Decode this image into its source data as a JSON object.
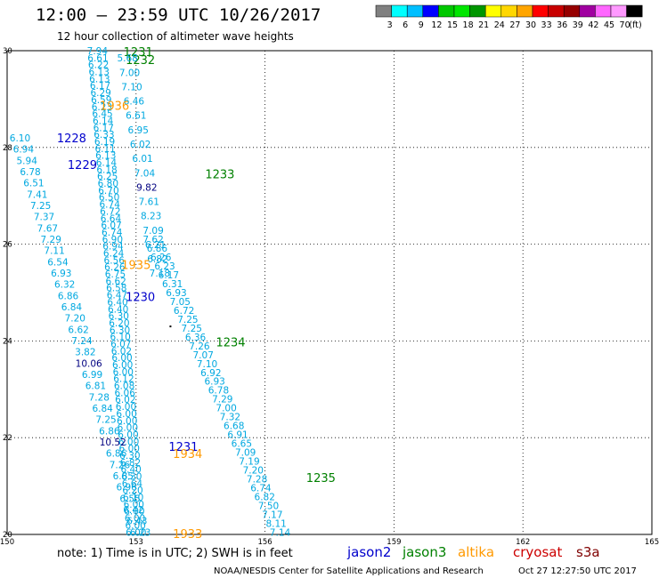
{
  "header": {
    "title": "12:00 – 23:59 UTC 10/26/2017",
    "subtitle": "12 hour collection of altimeter wave heights"
  },
  "colorbar": {
    "colors": [
      "#808080",
      "#00ffff",
      "#00bfff",
      "#0000ff",
      "#00c800",
      "#00e600",
      "#009600",
      "#ffff00",
      "#ffd700",
      "#ffa500",
      "#ff0000",
      "#c80000",
      "#960000",
      "#a000a0",
      "#ff66ff",
      "#ff99ff",
      "#000000"
    ],
    "labels": [
      "3",
      "6",
      "9",
      "12",
      "15",
      "18",
      "21",
      "24",
      "27",
      "30",
      "33",
      "36",
      "39",
      "42",
      "45",
      "70",
      "(ft)"
    ]
  },
  "footer": {
    "note": "note: 1) Time is in UTC; 2) SWH is in feet",
    "credit": "NOAA/NESDIS Center for Satellite Applications and Research",
    "timestamp": "Oct 27 12:27:50 UTC 2017",
    "legend": [
      {
        "name": "jason2",
        "color": "#0000cc"
      },
      {
        "name": "jason3",
        "color": "#008000"
      },
      {
        "name": "altika",
        "color": "#ff9900"
      },
      {
        "name": "cryosat",
        "color": "#cc0000"
      },
      {
        "name": "s3a",
        "color": "#800000"
      }
    ]
  },
  "chart_data": {
    "type": "scatter",
    "xlim": [
      150,
      165
    ],
    "ylim": [
      20,
      30
    ],
    "xticks": [
      "150",
      "153",
      "156",
      "159",
      "162",
      "165"
    ],
    "yticks": [
      "20",
      "22",
      "24",
      "26",
      "28",
      "30"
    ],
    "grid": true,
    "grid_style": "dotted",
    "colors": {
      "jason2": "#0000cc",
      "jason3": "#008000",
      "altika": "#ff9900",
      "swh": "#00a8e0",
      "swh_high": "#000080"
    },
    "tracks": [
      {
        "satellite": "jason3",
        "x0": 152.1,
        "y0": 30,
        "x1": 153.0,
        "y1": 20.05,
        "values": [
          "7.94",
          "6.61",
          "6.22",
          "6.13",
          "6.13",
          "6.17",
          "6.29",
          "6.59",
          "6.23",
          "6.45",
          "6.14",
          "6.17",
          "6.33",
          "6.19",
          "6.11",
          "6.13",
          "6.14",
          "6.18",
          "6.25",
          "6.80",
          "6.70",
          "6.50",
          "6.74",
          "6.72",
          "6.64",
          "6.07",
          "6.74",
          "6.90",
          "6.94",
          "6.24",
          "6.56",
          "6.26",
          "6.75",
          "6.62",
          "6.58",
          "6.47",
          "6.40",
          "6.40",
          "6.30",
          "6.20",
          "6.30",
          "6.10",
          "6.07",
          "6.02",
          "6.00",
          "6.00",
          "6.00",
          "6.12",
          "6.08",
          "6.06",
          "6.02",
          "6.00",
          "6.00",
          "6.00",
          "6.00",
          "6.00",
          "6.00",
          "6.00",
          "6.30",
          "6.82",
          "6.40",
          "6.30",
          "6.64",
          "6.20",
          "6.10",
          "6.00",
          "6.00",
          "6.00",
          "6.00",
          "6.00"
        ],
        "labels": [
          {
            "text": "1231",
            "x": 153.05,
            "y": 29.98
          },
          {
            "text": "1232",
            "x": 153.1,
            "y": 29.82
          }
        ]
      },
      {
        "satellite": "jason3",
        "x0": 152.8,
        "y0": 29.85,
        "x1": 153.55,
        "y1": 25.4,
        "values": [
          "5.68",
          "7.00",
          "7.10",
          "6.46",
          "6.61",
          "6.95",
          "6.02",
          "6.01",
          "7.04",
          "9.82",
          "7.61",
          "8.23",
          "7.09",
          "6.21",
          "6.82",
          "7.18"
        ],
        "labels": []
      },
      {
        "satellite": "jason3",
        "x0": 153.4,
        "y0": 26.1,
        "x1": 156.35,
        "y1": 20.05,
        "values": [
          "7.62",
          "6.86",
          "6.26",
          "6.23",
          "6.17",
          "6.31",
          "6.93",
          "7.05",
          "6.72",
          "7.25",
          "7.25",
          "6.36",
          "7.26",
          "7.07",
          "7.10",
          "6.92",
          "6.93",
          "6.78",
          "7.29",
          "7.00",
          "7.32",
          "6.68",
          "6.91",
          "6.65",
          "7.09",
          "7.19",
          "7.20",
          "7.28",
          "6.74",
          "6.82",
          "7.50",
          "7.17",
          "8.11",
          "7.14"
        ],
        "labels": [
          {
            "text": "1233",
            "x": 154.95,
            "y": 27.45
          },
          {
            "text": "1234",
            "x": 155.2,
            "y": 23.98
          },
          {
            "text": "1235",
            "x": 157.3,
            "y": 21.18
          }
        ]
      },
      {
        "satellite": "jason2",
        "x0": 150.3,
        "y0": 28.2,
        "x1": 153.1,
        "y1": 20.05,
        "values": [
          "6.10",
          "6.94",
          "5.94",
          "6.78",
          "6.51",
          "7.41",
          "7.25",
          "7.37",
          "7.67",
          "7.29",
          "7.11",
          "6.54",
          "6.93",
          "6.32",
          "6.86",
          "6.84",
          "7.20",
          "6.62",
          "7.24",
          "3.82",
          "10.06",
          "6.99",
          "6.81",
          "7.28",
          "6.84",
          "7.25",
          "6.86",
          "10.52",
          "6.86",
          "7.26",
          "6.85",
          "6.96",
          "6.55",
          "6.42",
          "6.43",
          "6.23"
        ],
        "labels": [
          {
            "text": "1228",
            "x": 151.5,
            "y": 28.2
          },
          {
            "text": "1229",
            "x": 151.75,
            "y": 27.65
          },
          {
            "text": "1230",
            "x": 153.1,
            "y": 24.92
          },
          {
            "text": "1231",
            "x": 154.1,
            "y": 21.82
          }
        ]
      }
    ],
    "altika_labels": [
      {
        "text": "1936",
        "x": 152.5,
        "y": 28.87
      },
      {
        "text": "1935",
        "x": 153.0,
        "y": 25.58
      },
      {
        "text": "1934",
        "x": 154.2,
        "y": 21.67
      },
      {
        "text": "1933",
        "x": 154.2,
        "y": 20.02
      }
    ]
  }
}
